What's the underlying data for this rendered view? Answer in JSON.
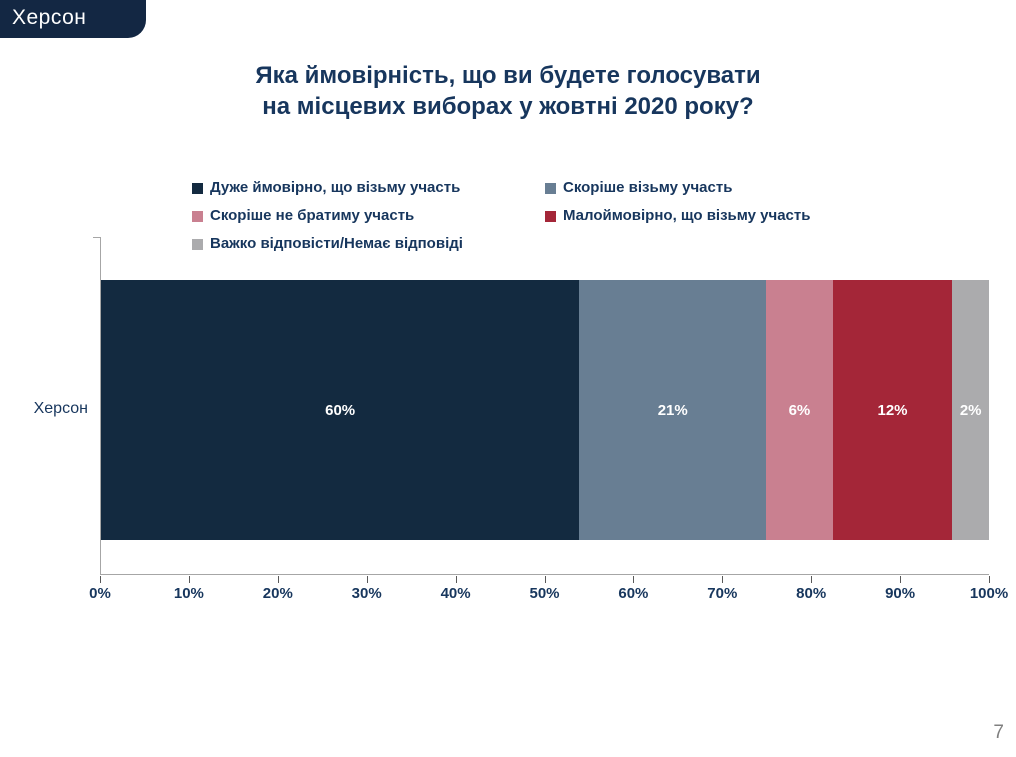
{
  "badge": {
    "label": "Херсон"
  },
  "title": {
    "line1": "Яка ймовірність, що ви будете голосувати",
    "line2": "на місцевих виборах у жовтні 2020 року?"
  },
  "category_label": "Херсон",
  "page_number": "7",
  "theme": {
    "navy_text": "#17365D",
    "badge_bg": "#132743",
    "axis_line": "#A6A6A6",
    "tick_mark": "#595959",
    "label_on_bar": "#FFFFFF",
    "page_number_gray": "#7F7F7F"
  },
  "chart_data": {
    "type": "bar",
    "orientation": "horizontal-stacked",
    "title": "Яка ймовірність, що ви будете голосувати на місцевих виборах у жовтні 2020 року?",
    "categories": [
      "Херсон"
    ],
    "series": [
      {
        "name": "Дуже ймовірно, що візьму участь",
        "values": [
          60
        ],
        "color": "#132A40"
      },
      {
        "name": "Скоріше візьму участь",
        "values": [
          21
        ],
        "color": "#687E93"
      },
      {
        "name": "Скоріше не братиму участь",
        "values": [
          6
        ],
        "color": "#C98090"
      },
      {
        "name": "Малоймовірно, що візьму участь",
        "values": [
          12
        ],
        "color": "#A42638"
      },
      {
        "name": "Важко відповісти/Немає відповіді",
        "values": [
          2
        ],
        "color": "#ABABAD"
      }
    ],
    "data_label_format": "{value}%",
    "x_ticks": [
      "0%",
      "10%",
      "20%",
      "30%",
      "40%",
      "50%",
      "60%",
      "70%",
      "80%",
      "90%",
      "100%"
    ],
    "xlim": [
      0,
      100
    ],
    "grid": false,
    "legend_position": "top-left, two columns"
  }
}
